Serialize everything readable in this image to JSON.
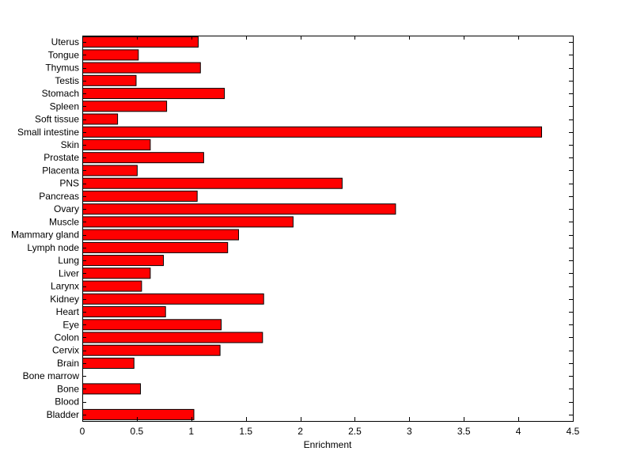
{
  "chart_data": {
    "type": "bar",
    "orientation": "horizontal",
    "categories": [
      "Bladder",
      "Blood",
      "Bone",
      "Bone marrow",
      "Brain",
      "Cervix",
      "Colon",
      "Eye",
      "Heart",
      "Kidney",
      "Larynx",
      "Liver",
      "Lung",
      "Lymph node",
      "Mammary gland",
      "Muscle",
      "Ovary",
      "Pancreas",
      "PNS",
      "Placenta",
      "Prostate",
      "Skin",
      "Small intestine",
      "Soft tissue",
      "Spleen",
      "Stomach",
      "Testis",
      "Thymus",
      "Tongue",
      "Uterus"
    ],
    "values": [
      1.02,
      0,
      0.53,
      0,
      0.47,
      1.26,
      1.65,
      1.27,
      0.76,
      1.66,
      0.54,
      0.62,
      0.74,
      1.33,
      1.43,
      1.93,
      2.87,
      1.05,
      2.38,
      0.5,
      1.11,
      0.62,
      4.21,
      0.32,
      0.77,
      1.3,
      0.49,
      1.08,
      0.51,
      1.06
    ],
    "title": "",
    "xlabel": "Enrichment",
    "ylabel": "",
    "xlim": [
      0,
      4.5
    ],
    "xticks": [
      0,
      0.5,
      1,
      1.5,
      2,
      2.5,
      3,
      3.5,
      4,
      4.5
    ],
    "xtick_labels": [
      "0",
      "0.5",
      "1",
      "1.5",
      "2",
      "2.5",
      "3",
      "3.5",
      "4",
      "4.5"
    ],
    "grid": false,
    "legend": "none",
    "bar_color": "#ff0000",
    "edge_color": "#000000"
  }
}
